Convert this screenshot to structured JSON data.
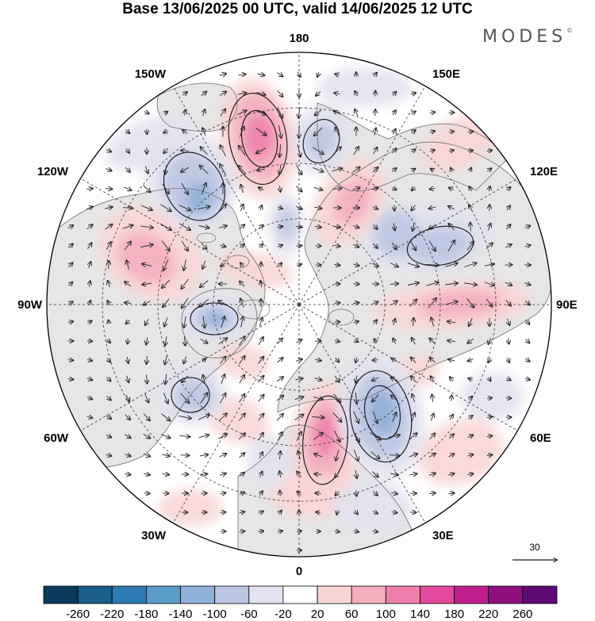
{
  "title": "Base 13/06/2025 00 UTC, valid 14/06/2025 12 UTC",
  "brand": {
    "text": "MODES",
    "mark": "©"
  },
  "map": {
    "projection": "north-polar-stereographic",
    "longitude_labels": [
      {
        "lon": 180,
        "text": "180"
      },
      {
        "lon": 150,
        "text": "150E"
      },
      {
        "lon": 120,
        "text": "120E"
      },
      {
        "lon": 90,
        "text": "90E"
      },
      {
        "lon": 60,
        "text": "60E"
      },
      {
        "lon": 30,
        "text": "30E"
      },
      {
        "lon": 0,
        "text": "0"
      },
      {
        "lon": -30,
        "text": "30W"
      },
      {
        "lon": -60,
        "text": "60W"
      },
      {
        "lon": -90,
        "text": "90W"
      },
      {
        "lon": -120,
        "text": "120W"
      },
      {
        "lon": -150,
        "text": "150W"
      }
    ],
    "reference_vector": {
      "value": "30"
    }
  },
  "colorbar": {
    "labels": [
      "-260",
      "-220",
      "-180",
      "-140",
      "-100",
      "-60",
      "-20",
      "20",
      "60",
      "100",
      "140",
      "180",
      "220",
      "260"
    ],
    "colors": [
      "#0a3b5c",
      "#1b5e8c",
      "#2e7bb4",
      "#5a9bcc",
      "#8fb0d8",
      "#bcc6e3",
      "#e2e2f0",
      "#ffffff",
      "#f8d5d5",
      "#f4aebe",
      "#ee7fac",
      "#e44a9e",
      "#c21f8e",
      "#8e1080",
      "#5e0a74"
    ]
  },
  "colors": {
    "land": "#e6e6e6",
    "ocean": "#ffffff",
    "coast": "#6e6e6e"
  }
}
